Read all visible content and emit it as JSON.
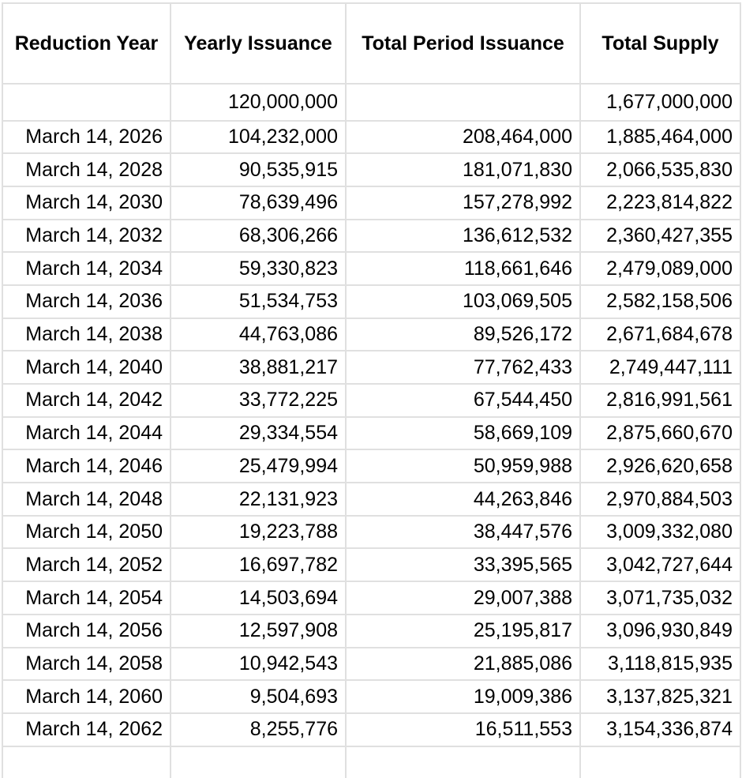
{
  "app": {
    "description": "Spreadsheet table of token issuance reduction schedule"
  },
  "colors": {
    "background": "#ffffff",
    "gridline": "#e0e0e0",
    "text": "#000000"
  },
  "table": {
    "columns": [
      {
        "label": "Reduction Year"
      },
      {
        "label": "Yearly Issuance"
      },
      {
        "label": "Total Period Issuance"
      },
      {
        "label": "Total Supply"
      }
    ],
    "rows": [
      [
        "",
        "120,000,000",
        "",
        "1,677,000,000"
      ],
      [
        "March 14, 2026",
        "104,232,000",
        "208,464,000",
        "1,885,464,000"
      ],
      [
        "March 14, 2028",
        "90,535,915",
        "181,071,830",
        "2,066,535,830"
      ],
      [
        "March 14, 2030",
        "78,639,496",
        "157,278,992",
        "2,223,814,822"
      ],
      [
        "March 14, 2032",
        "68,306,266",
        "136,612,532",
        "2,360,427,355"
      ],
      [
        "March 14, 2034",
        "59,330,823",
        "118,661,646",
        "2,479,089,000"
      ],
      [
        "March 14, 2036",
        "51,534,753",
        "103,069,505",
        "2,582,158,506"
      ],
      [
        "March 14, 2038",
        "44,763,086",
        "89,526,172",
        "2,671,684,678"
      ],
      [
        "March 14, 2040",
        "38,881,217",
        "77,762,433",
        "2,749,447,111"
      ],
      [
        "March 14, 2042",
        "33,772,225",
        "67,544,450",
        "2,816,991,561"
      ],
      [
        "March 14, 2044",
        "29,334,554",
        "58,669,109",
        "2,875,660,670"
      ],
      [
        "March 14, 2046",
        "25,479,994",
        "50,959,988",
        "2,926,620,658"
      ],
      [
        "March 14, 2048",
        "22,131,923",
        "44,263,846",
        "2,970,884,503"
      ],
      [
        "March 14, 2050",
        "19,223,788",
        "38,447,576",
        "3,009,332,080"
      ],
      [
        "March 14, 2052",
        "16,697,782",
        "33,395,565",
        "3,042,727,644"
      ],
      [
        "March 14, 2054",
        "14,503,694",
        "29,007,388",
        "3,071,735,032"
      ],
      [
        "March 14, 2056",
        "12,597,908",
        "25,195,817",
        "3,096,930,849"
      ],
      [
        "March 14, 2058",
        "10,942,543",
        "21,885,086",
        "3,118,815,935"
      ],
      [
        "March 14, 2060",
        "9,504,693",
        "19,009,386",
        "3,137,825,321"
      ],
      [
        "March 14, 2062",
        "8,255,776",
        "16,511,553",
        "3,154,336,874"
      ]
    ]
  }
}
